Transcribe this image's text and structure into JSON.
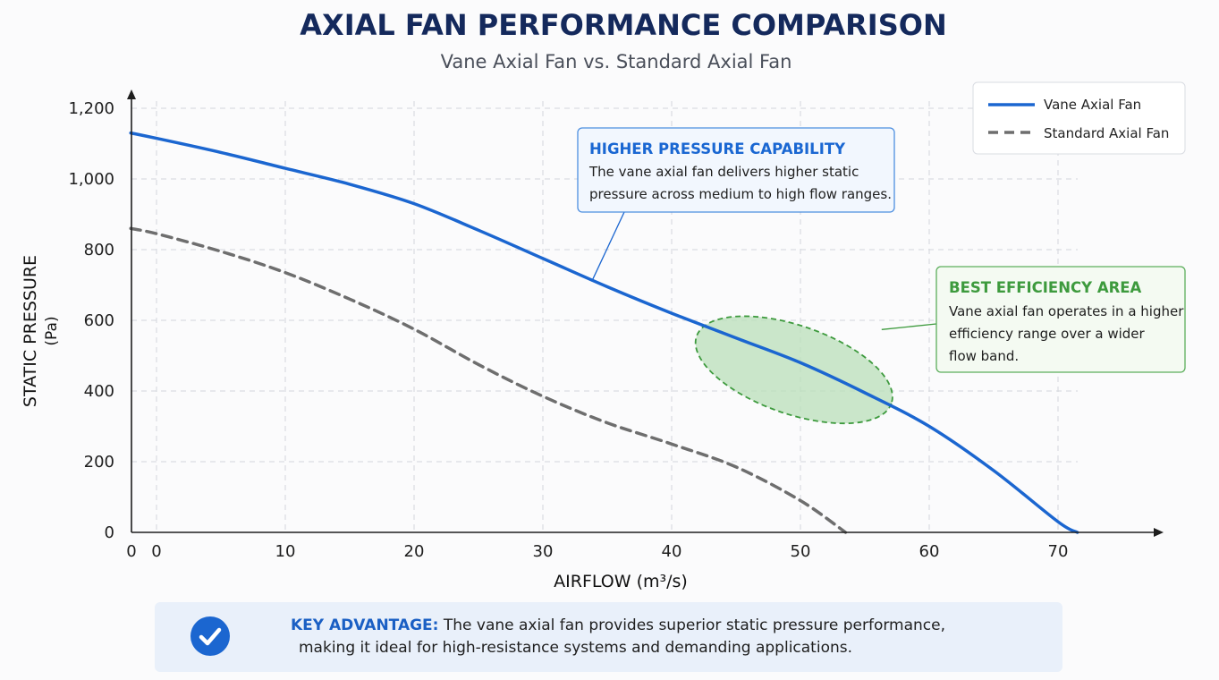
{
  "chart_data": {
    "type": "line",
    "title": "AXIAL FAN PERFORMANCE COMPARISON",
    "subtitle": "Vane Axial Fan vs. Standard Axial Fan",
    "xlabel": "AIRFLOW (m³/s)",
    "ylabel": "STATIC PRESSURE",
    "ylabel_unit": "(Pa)",
    "xlim": [
      -2,
      80
    ],
    "ylim": [
      0,
      1200
    ],
    "x_ticks": [
      0,
      10,
      20,
      30,
      40,
      50,
      60,
      70
    ],
    "x_tick_labels": [
      "0",
      "10",
      "20",
      "30",
      "40",
      "50",
      "60",
      "70"
    ],
    "x_origin_label": "0",
    "y_ticks": [
      0,
      200,
      400,
      600,
      800,
      1000,
      1200
    ],
    "y_tick_labels": [
      "0",
      "200",
      "400",
      "600",
      "800",
      "1,000",
      "1,200"
    ],
    "grid": true,
    "legend_position": "top-right",
    "series": [
      {
        "name": "Vane Axial Fan",
        "style": "solid",
        "color": "#1b66d0",
        "x": [
          -2,
          0,
          5,
          10,
          15,
          20,
          25,
          30,
          35,
          40,
          45,
          50,
          55,
          60,
          65,
          70,
          71.5
        ],
        "y": [
          1130,
          1115,
          1075,
          1030,
          985,
          930,
          855,
          775,
          695,
          620,
          550,
          480,
          395,
          300,
          175,
          30,
          0
        ]
      },
      {
        "name": "Standard Axial Fan",
        "style": "dashed",
        "color": "#6e6e6e",
        "x": [
          -2,
          0,
          5,
          10,
          15,
          20,
          25,
          30,
          35,
          40,
          45,
          50,
          53.5
        ],
        "y": [
          860,
          845,
          795,
          735,
          660,
          575,
          475,
          385,
          310,
          250,
          185,
          90,
          0
        ]
      }
    ],
    "annotations": [
      {
        "kind": "callout",
        "title": "HIGHER PRESSURE CAPABILITY",
        "lines": [
          "The vane axial fan delivers higher static",
          "pressure across medium to high flow ranges."
        ],
        "color": "#1b66d0",
        "points_to": {
          "x": 34,
          "y": 735
        }
      },
      {
        "kind": "callout",
        "title": "BEST EFFICIENCY AREA",
        "lines": [
          "Vane axial fan operates in a higher",
          "efficiency range over a wider",
          "flow band."
        ],
        "color": "#3d9a3d",
        "points_to": {
          "x": 57,
          "y": 465
        }
      },
      {
        "kind": "region",
        "label": "best-efficiency",
        "center": {
          "x": 49.5,
          "y": 460
        },
        "radius_x": 8,
        "radius_y": 125,
        "fill": "#b9dfb9",
        "stroke": "#3d9a3d"
      }
    ]
  },
  "key_advantage": {
    "label": "KEY ADVANTAGE:",
    "line1": " The vane axial fan provides superior static pressure performance,",
    "line2": "making it ideal for high-resistance systems and demanding applications.",
    "icon": "check-circle-icon"
  }
}
